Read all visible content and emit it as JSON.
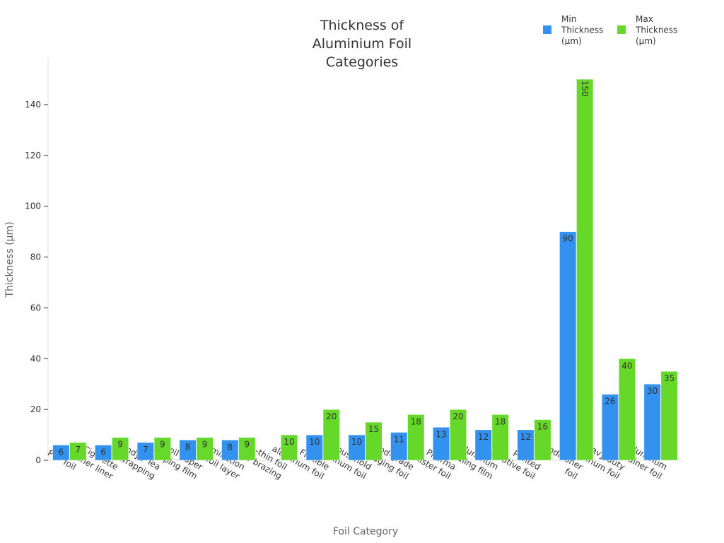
{
  "chart_data": {
    "type": "bar",
    "title": "Thickness of Aluminium Foil Categories",
    "xlabel": "Foil Category",
    "ylabel": "Thickness (µm)",
    "ylim": [
      0,
      150
    ],
    "yticks": [
      0,
      20,
      40,
      60,
      80,
      100,
      120,
      140
    ],
    "grid": false,
    "legend_position": "top-right",
    "categories": [
      "PTP foil",
      "Cigarette inner liner",
      "Candy / Tea wrapping",
      "Foil paper wrapping film",
      "Lamination foil layer",
      "Ultra-thin foil for brazing",
      "Flexible aluminum foil",
      "Household aluminum foil",
      "Food-grade packaging foil",
      "Pharma blister foil",
      "Aluminum sealing film",
      "Printed decorative foil",
      "Air conditioner foil",
      "Heavy-duty aluminum foil",
      "Aluminum container foil"
    ],
    "series": [
      {
        "name": "Min Thickness (µm)",
        "color": "#3391f0",
        "values": [
          6,
          6,
          7,
          8,
          8,
          null,
          10,
          10,
          11,
          13,
          12,
          12,
          90,
          26,
          30
        ]
      },
      {
        "name": "Max Thickness (µm)",
        "color": "#66d82a",
        "values": [
          7,
          9,
          9,
          9,
          9,
          10,
          20,
          15,
          18,
          20,
          18,
          16,
          150,
          40,
          35
        ]
      }
    ]
  }
}
